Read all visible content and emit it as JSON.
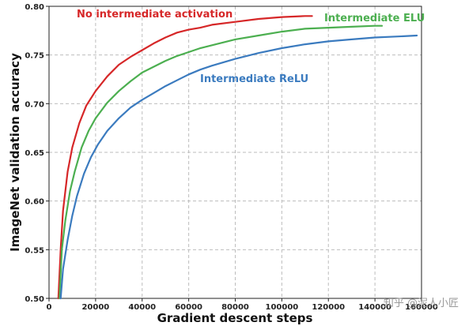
{
  "chart_data": {
    "type": "line",
    "title": "",
    "xlabel": "Gradient descent steps",
    "ylabel": "ImageNet validation accuracy",
    "xlim": [
      0,
      160000
    ],
    "ylim": [
      0.5,
      0.8
    ],
    "grid": true,
    "x_ticks": [
      "0",
      "20000",
      "40000",
      "60000",
      "80000",
      "100000",
      "120000",
      "140000",
      "160000"
    ],
    "y_ticks": [
      "0.50",
      "0.55",
      "0.60",
      "0.65",
      "0.70",
      "0.75",
      "0.80"
    ],
    "series": [
      {
        "name": "No intermediate activation",
        "color": "#d62728",
        "x": [
          4000,
          5000,
          6000,
          8000,
          10000,
          13000,
          16000,
          20000,
          25000,
          30000,
          35000,
          40000,
          45000,
          50000,
          55000,
          60000,
          65000,
          70000,
          80000,
          90000,
          100000,
          110000,
          113000
        ],
        "y": [
          0.5,
          0.55,
          0.59,
          0.63,
          0.655,
          0.68,
          0.698,
          0.713,
          0.728,
          0.74,
          0.748,
          0.755,
          0.762,
          0.768,
          0.773,
          0.776,
          0.778,
          0.781,
          0.784,
          0.787,
          0.789,
          0.79,
          0.79
        ]
      },
      {
        "name": "Intermediate ELU",
        "color": "#4caf50",
        "x": [
          4500,
          5500,
          7000,
          9000,
          11000,
          14000,
          17000,
          20000,
          25000,
          30000,
          35000,
          40000,
          45000,
          50000,
          55000,
          60000,
          65000,
          70000,
          80000,
          90000,
          100000,
          110000,
          120000,
          130000,
          140000,
          143000
        ],
        "y": [
          0.5,
          0.55,
          0.58,
          0.61,
          0.63,
          0.655,
          0.672,
          0.685,
          0.701,
          0.713,
          0.723,
          0.732,
          0.738,
          0.744,
          0.749,
          0.753,
          0.757,
          0.76,
          0.766,
          0.77,
          0.774,
          0.777,
          0.778,
          0.779,
          0.78,
          0.78
        ]
      },
      {
        "name": "Intermediate ReLU",
        "color": "#3b7bbf",
        "x": [
          5000,
          6000,
          8000,
          10000,
          12000,
          15000,
          18000,
          21000,
          25000,
          30000,
          35000,
          40000,
          45000,
          50000,
          55000,
          60000,
          65000,
          70000,
          80000,
          90000,
          100000,
          110000,
          120000,
          130000,
          140000,
          150000,
          158000
        ],
        "y": [
          0.5,
          0.53,
          0.56,
          0.585,
          0.605,
          0.628,
          0.645,
          0.658,
          0.672,
          0.685,
          0.696,
          0.704,
          0.711,
          0.718,
          0.724,
          0.73,
          0.735,
          0.739,
          0.746,
          0.752,
          0.757,
          0.761,
          0.764,
          0.766,
          0.768,
          0.769,
          0.77
        ]
      }
    ]
  },
  "watermark": "知乎 @泥人小匠"
}
